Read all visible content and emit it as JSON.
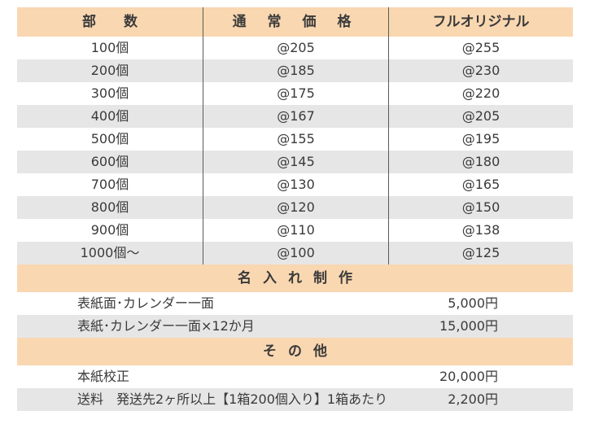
{
  "table": {
    "headers": [
      "部　　数",
      "通 常 価 格",
      "フルオリジナル"
    ],
    "rows": [
      {
        "qty": "100個",
        "normal": "@205",
        "original": "@255"
      },
      {
        "qty": "200個",
        "normal": "@185",
        "original": "@230"
      },
      {
        "qty": "300個",
        "normal": "@175",
        "original": "@220"
      },
      {
        "qty": "400個",
        "normal": "@167",
        "original": "@205"
      },
      {
        "qty": "500個",
        "normal": "@155",
        "original": "@195"
      },
      {
        "qty": "600個",
        "normal": "@145",
        "original": "@180"
      },
      {
        "qty": "700個",
        "normal": "@130",
        "original": "@165"
      },
      {
        "qty": "800個",
        "normal": "@120",
        "original": "@150"
      },
      {
        "qty": "900個",
        "normal": "@110",
        "original": "@138"
      },
      {
        "qty": "1000個〜",
        "normal": "@100",
        "original": "@125"
      }
    ]
  },
  "naire": {
    "title": "名入れ制作",
    "items": [
      {
        "label": "表紙面･カレンダー一面",
        "price": "5,000円"
      },
      {
        "label": "表紙･カレンダー一面×12か月",
        "price": "15,000円"
      }
    ]
  },
  "sonota": {
    "title": "その他",
    "items": [
      {
        "label": "本紙校正",
        "price": "20,000円"
      },
      {
        "label": "送料　発送先2ヶ所以上【1箱200個入り】1箱あたり",
        "price": "2,200円"
      }
    ]
  },
  "colors": {
    "header_bg": "#f9d7b1",
    "stripe": "#e6e6e6"
  }
}
